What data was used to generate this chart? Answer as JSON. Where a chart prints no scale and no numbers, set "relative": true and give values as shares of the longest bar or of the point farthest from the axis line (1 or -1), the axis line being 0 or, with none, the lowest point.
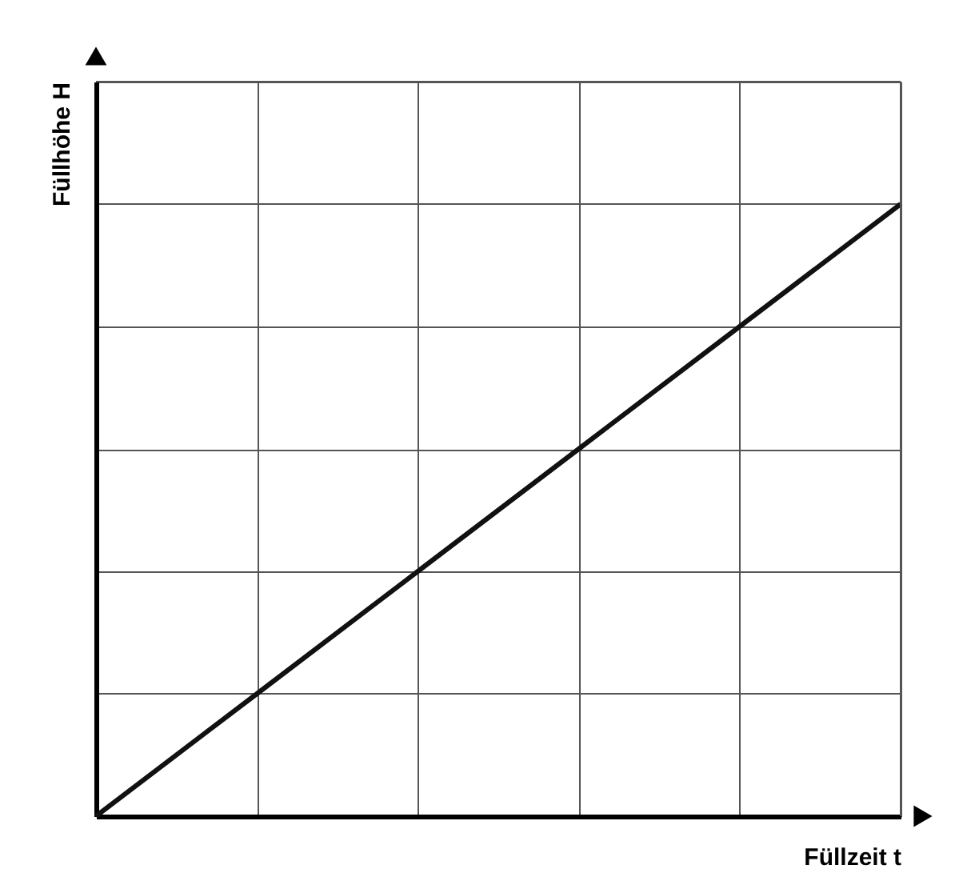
{
  "chart_data": {
    "type": "line",
    "relative": true,
    "xlabel": "Füllzeit t",
    "ylabel": "Füllhöhe H",
    "categories": [
      null,
      null,
      null,
      null,
      null,
      null
    ],
    "series": [
      {
        "color": "#111111",
        "values": [
          0,
          0.2,
          0.4,
          0.6,
          0.8,
          1.0
        ]
      }
    ],
    "grid": true,
    "tick_labels": false,
    "marker": "none",
    "line_style": "solid"
  }
}
